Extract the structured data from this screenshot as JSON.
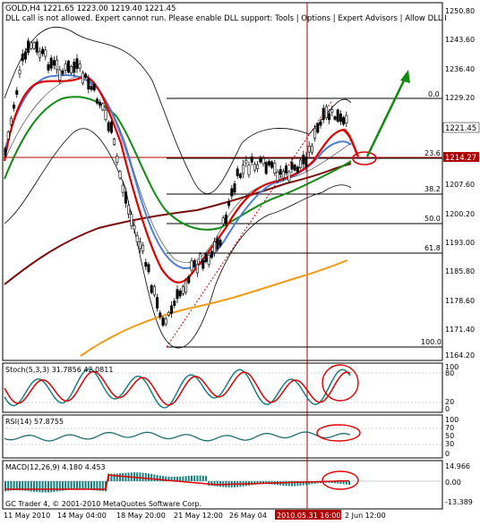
{
  "chart": {
    "symbol_header": "GOLD,H4  1221.65 1223.00 1219.40 1221.45",
    "dll_warning": "DLL call is not allowed. Expert cannot run. Please enable DLL support: Tools | Options | Expert Advisors | Allow DLL I",
    "copyright": "GC Trader 4, © 2001-2010 MetaQuotes Software Corp.",
    "price_axis_labels": [
      "1250.80",
      "1243.60",
      "1236.40",
      "1229.20",
      "1221.45",
      "1214.27",
      "1207.60",
      "1200.20",
      "1193.00",
      "1185.80",
      "1178.60",
      "1171.40",
      "1164.20"
    ],
    "current_price": "1221.45",
    "crosshair_price": "1214.27",
    "fib_labels": [
      "0.0",
      "23.6",
      "38.2",
      "50.0",
      "61.8",
      "100.0"
    ],
    "time_axis_labels": [
      "11 May 2010",
      "14 May 04:00",
      "18 May 20:00",
      "21 May 12:00",
      "26 May 04",
      "2010.05.31 16:00",
      "2 Jun 12:00"
    ],
    "stoch_label": "Stoch(5,3,3) 31.7856 42.0811",
    "stoch_axis": [
      "100",
      "80",
      "20",
      "0"
    ],
    "rsi_label": "RSI(14) 57.8755",
    "rsi_axis": [
      "100",
      "70",
      "50",
      "30",
      "0"
    ],
    "macd_label": "MACD(12,26,9) 4.180 4.453",
    "macd_axis": [
      "14.966",
      "0.00",
      "-13.389"
    ],
    "colors": {
      "candle": "#000000",
      "ma_fast": "#e00000",
      "ma_mid": "#4a7fd4",
      "ma_slow_green": "#138a13",
      "ma_brown": "#7a0a0a",
      "ma_orange": "#f29a14",
      "bollinger": "#000000",
      "stoch_main": "#1a7f7f",
      "stoch_signal": "#e00000",
      "rsi": "#1f6f6f",
      "macd_hist": "#1a7f7f",
      "macd_signal": "#e00000",
      "arrow": "#118a11",
      "annot": "#e00000",
      "crosshair": "#b00000"
    }
  }
}
